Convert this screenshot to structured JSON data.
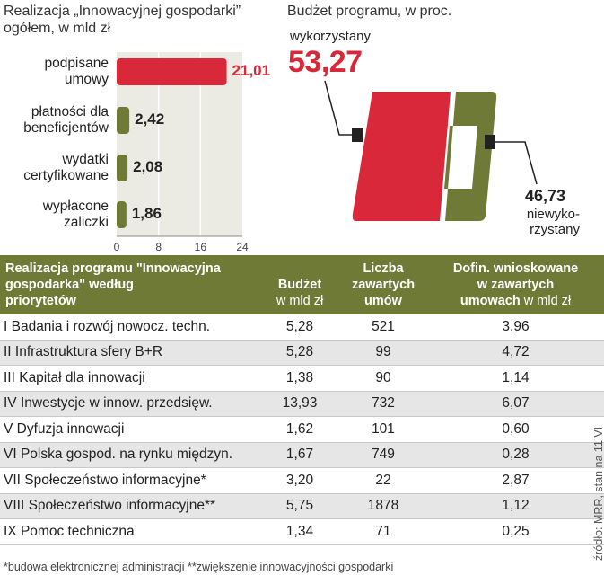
{
  "bar_chart": {
    "title_line1": "Realizacja „Innowacyjnej gospodarki”",
    "title_line2": "ogółem, w mld zł"
  },
  "pie_chart": {
    "title": "Budżet programu, w proc.",
    "used_label": "wykorzystany",
    "used_value": "53,27",
    "unused_value": "46,73",
    "unused_label_line1": "niewyko-",
    "unused_label_line2": "rzystany"
  },
  "table": {
    "headers": {
      "name_line1": "Realizacja programu \"Innowacyjna",
      "name_line2": "gospodarka\" według",
      "name_line3": "priorytetów",
      "budget_line1": "Budżet",
      "budget_line2": "w mld zł",
      "count_line1": "Liczba",
      "count_line2": "zawartych",
      "count_line3": "umów",
      "cofin_line1": "Dofin. wnioskowane",
      "cofin_line2": "w zawartych",
      "cofin_line3a": "umowach",
      "cofin_line3b": " w mld zł"
    },
    "rows": [
      {
        "name": "I Badania i rozwój nowocz. techn.",
        "budget": "5,28",
        "contracts": "521",
        "cofin": "3,96"
      },
      {
        "name": "II Infrastruktura sfery B+R",
        "budget": "5,28",
        "contracts": "99",
        "cofin": "4,72"
      },
      {
        "name": "III Kapitał dla innowacji",
        "budget": "1,38",
        "contracts": "90",
        "cofin": "1,14"
      },
      {
        "name": "IV Inwestycje w innow. przedsięw.",
        "budget": "13,93",
        "contracts": "732",
        "cofin": "6,07"
      },
      {
        "name": "V Dyfuzja innowacji",
        "budget": "1,62",
        "contracts": "101",
        "cofin": "0,60"
      },
      {
        "name": "VI Polska gospod. na rynku międzyn.",
        "budget": "1,67",
        "contracts": "749",
        "cofin": "0,28"
      },
      {
        "name": "VII Społeczeństwo informacyjne*",
        "budget": "3,20",
        "contracts": "22",
        "cofin": "2,87"
      },
      {
        "name": "VIII Społeczeństwo informacyjne**",
        "budget": "5,75",
        "contracts": "1878",
        "cofin": "1,12"
      },
      {
        "name": "IX Pomoc techniczna",
        "budget": "1,34",
        "contracts": "71",
        "cofin": "0,25"
      }
    ]
  },
  "footnote": "*budowa elektronicznej administracji  **zwiększenie innowacyjności gospodarki",
  "source": "źródło: MRR, stan  na 11 VI",
  "colors": {
    "red": "#d9283a",
    "olive": "#6f7a36",
    "gray_bg": "#ebebe3"
  },
  "chart_data": [
    {
      "type": "bar",
      "orientation": "horizontal",
      "title": "Realizacja „Innowacyjnej gospodarki” ogółem, w mld zł",
      "categories": [
        "podpisane umowy",
        "płatności dla beneficjentów",
        "wydatki certyfikowane",
        "wypłacone zaliczki"
      ],
      "category_lines": [
        [
          "podpisane",
          "umowy"
        ],
        [
          "płatności dla",
          "beneficjentów"
        ],
        [
          "wydatki",
          "certyfikowane"
        ],
        [
          "wypłacone",
          "zaliczki"
        ]
      ],
      "values": [
        21.01,
        2.42,
        2.08,
        1.86
      ],
      "value_labels": [
        "21,01",
        "2,42",
        "2,08",
        "1,86"
      ],
      "xlim": [
        0,
        24
      ],
      "xticks": [
        0,
        8,
        16,
        24
      ],
      "xtick_labels": [
        "0",
        "8",
        "16",
        "24"
      ],
      "grid": true,
      "colors": [
        "#d9283a",
        "#6f7a36",
        "#6f7a36",
        "#6f7a36"
      ]
    },
    {
      "type": "pie",
      "title": "Budżet programu, w proc.",
      "labels": [
        "wykorzystany",
        "niewykorzystany"
      ],
      "values": [
        53.27,
        46.73
      ],
      "colors": [
        "#d9283a",
        "#6f7a36"
      ]
    }
  ]
}
